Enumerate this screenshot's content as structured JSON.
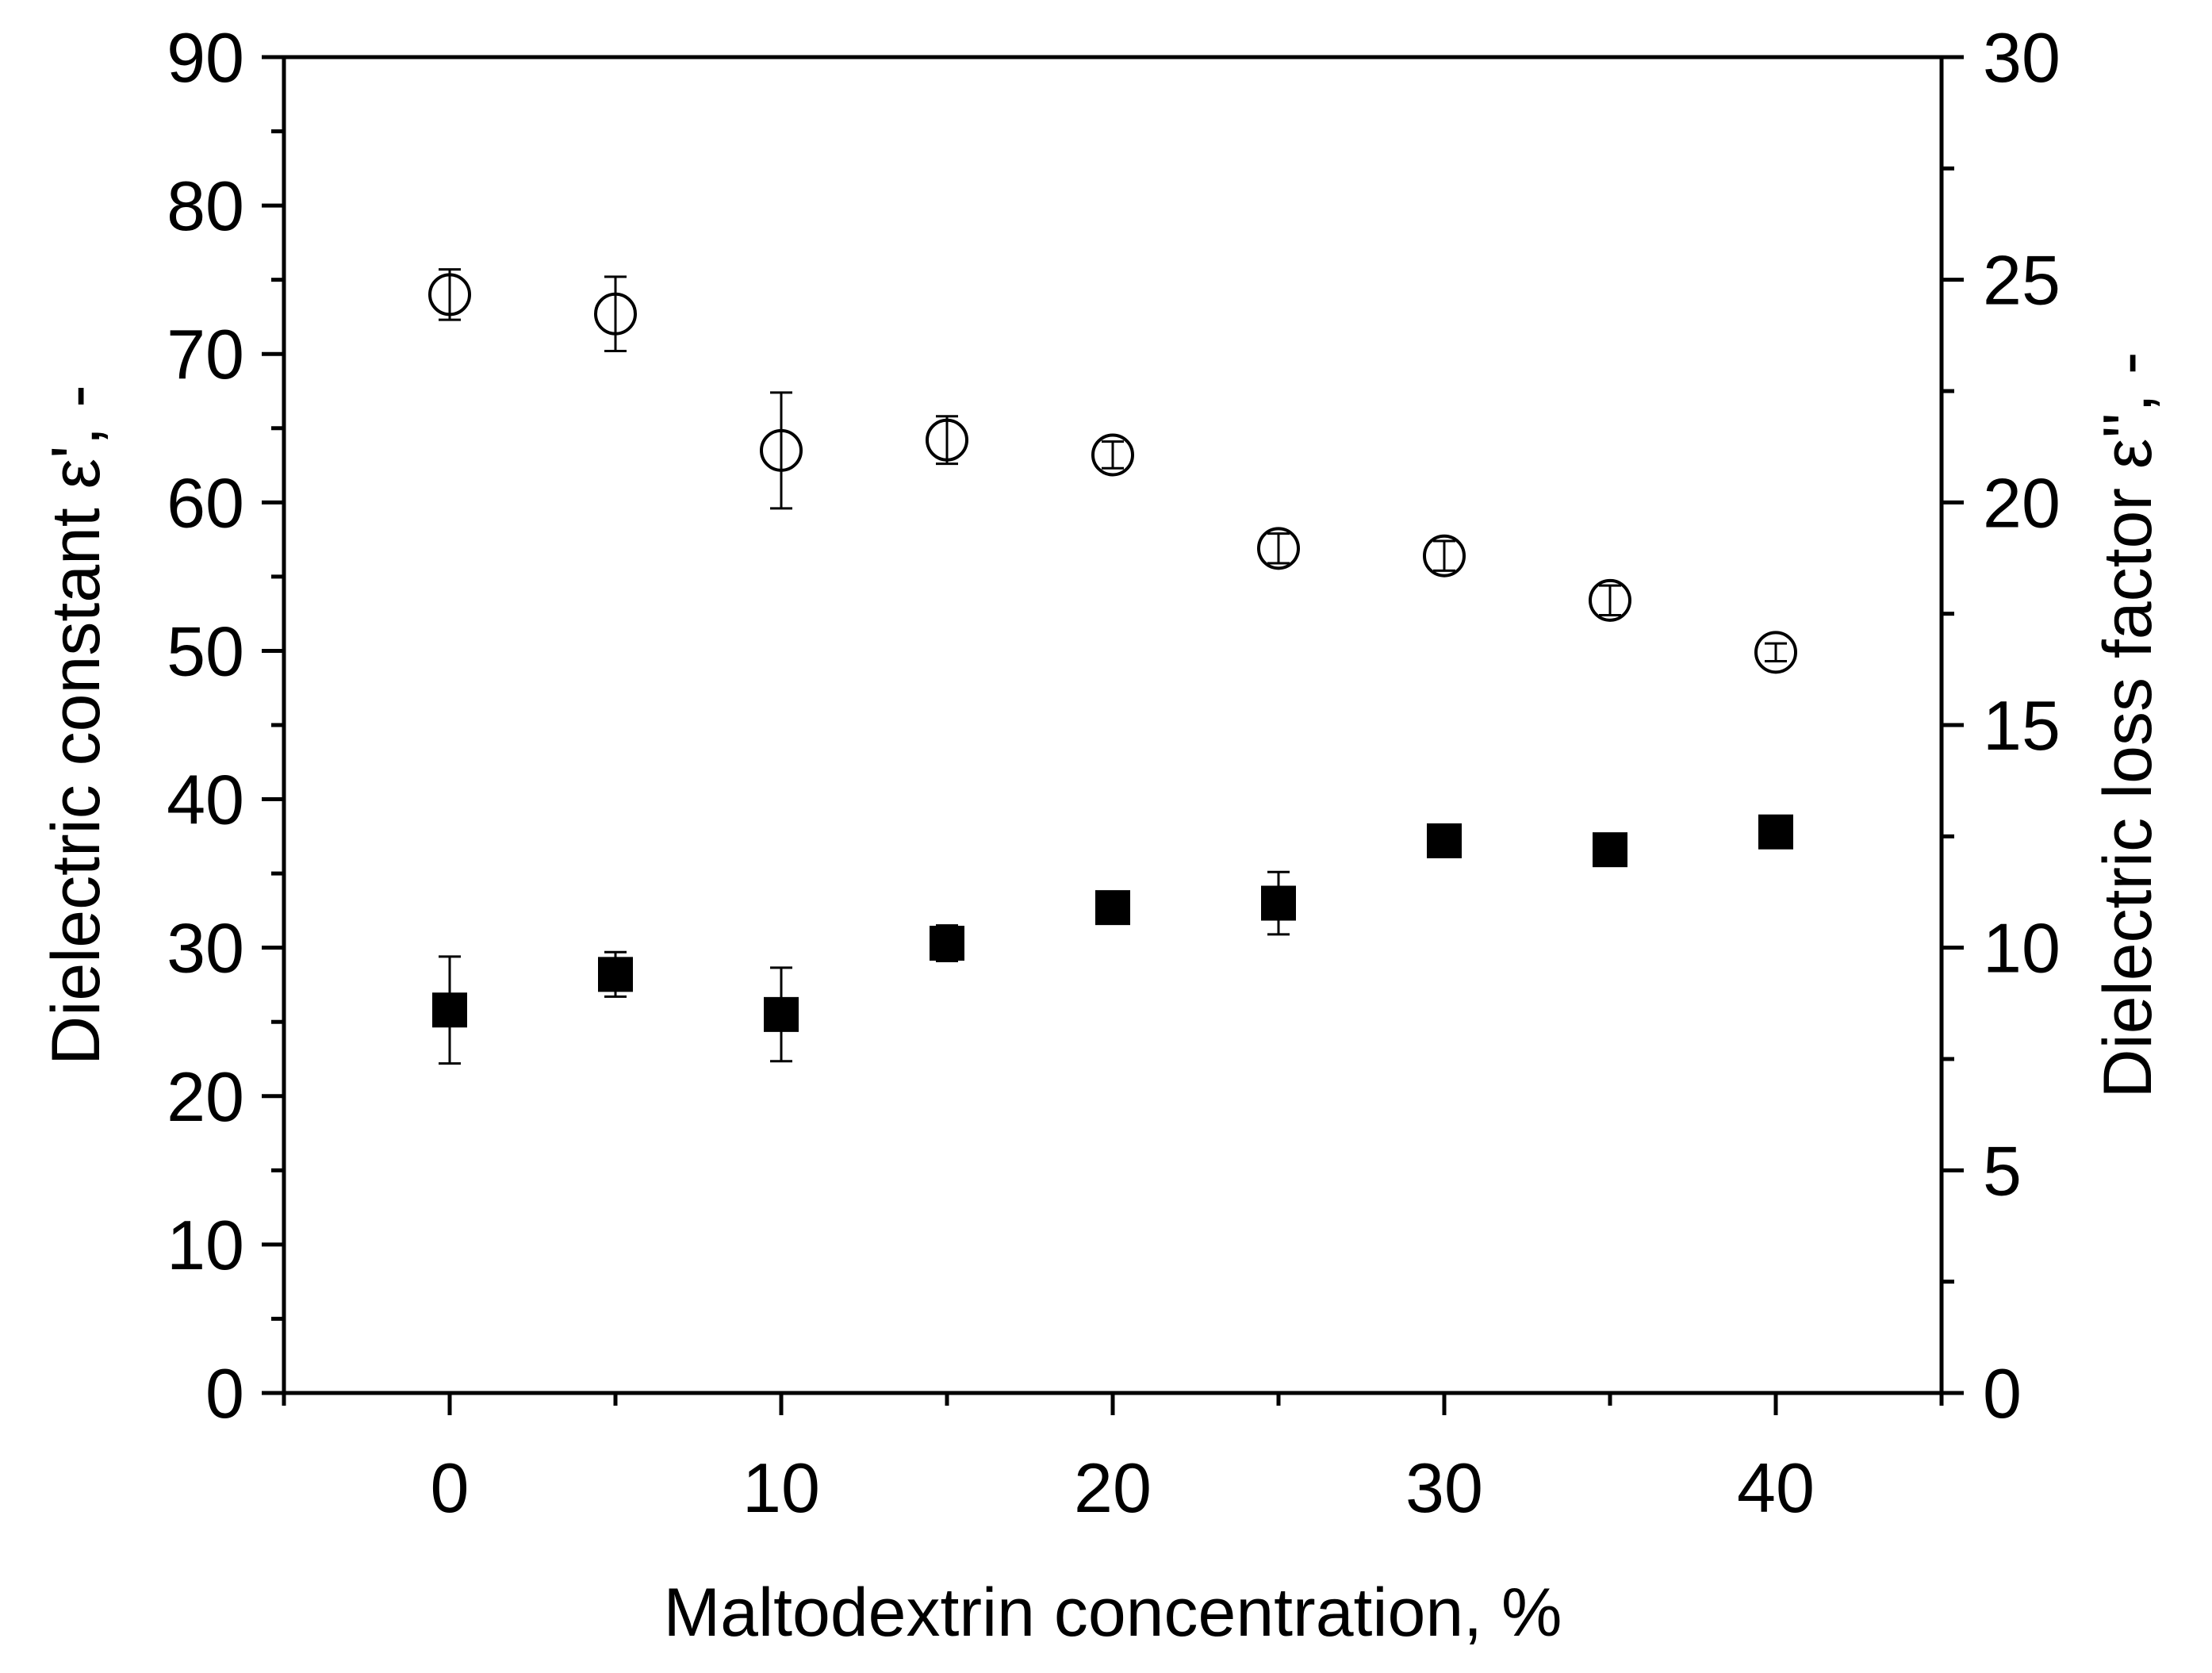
{
  "chart_data": {
    "type": "scatter",
    "title": "",
    "xlabel": "Maltodextrin concentration, %",
    "ylabel_left": "Dielectric constant ε', -",
    "ylabel_right": "Dielectric loss factor ε'', -",
    "xlim": [
      -5,
      45
    ],
    "ylim_left": [
      0,
      90
    ],
    "ylim_right": [
      0,
      30
    ],
    "x_ticks": [
      0,
      10,
      20,
      30,
      40
    ],
    "y_left_ticks": [
      0,
      10,
      20,
      30,
      40,
      50,
      60,
      70,
      80,
      90
    ],
    "y_right_ticks": [
      0,
      5,
      10,
      15,
      20,
      25,
      30
    ],
    "grid": false,
    "series": [
      {
        "name": "Dielectric constant ε'",
        "axis": "left",
        "marker": "open-circle",
        "color": "#000000",
        "x": [
          0,
          5,
          10,
          15,
          20,
          25,
          30,
          35,
          40
        ],
        "y": [
          74.0,
          72.7,
          63.5,
          64.2,
          63.2,
          56.9,
          56.4,
          53.4,
          49.9
        ],
        "err": [
          1.7,
          2.5,
          3.9,
          1.6,
          0.9,
          1.0,
          1.0,
          1.0,
          0.6
        ]
      },
      {
        "name": "Dielectric loss factor ε''",
        "axis": "right",
        "marker": "filled-square",
        "color": "#000000",
        "x": [
          0,
          5,
          10,
          15,
          20,
          25,
          30,
          35,
          40
        ],
        "y": [
          8.6,
          9.4,
          8.5,
          10.1,
          10.9,
          11.0,
          12.4,
          12.2,
          12.6
        ],
        "err": [
          1.2,
          0.5,
          1.05,
          0.4,
          0.1,
          0.7,
          0.1,
          0.1,
          0.1
        ]
      }
    ]
  }
}
